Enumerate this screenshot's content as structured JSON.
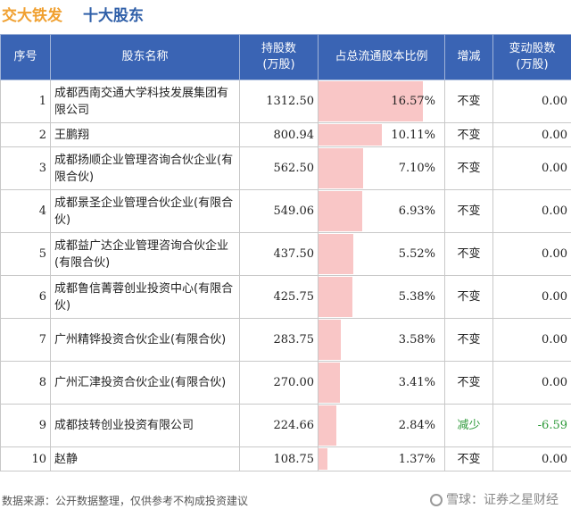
{
  "header": {
    "company": "交大铁发",
    "section": "十大股东"
  },
  "columns": {
    "rank": "序号",
    "name": "股东名称",
    "shares": "持股数\n(万股)",
    "pct": "占总流通股本比例",
    "change": "增减",
    "change_amount": "变动股数\n(万股)"
  },
  "rows": [
    {
      "rank": "1",
      "name": "成都西南交通大学科技发展集团有限公司",
      "shares": "1312.50",
      "pct": "16.57%",
      "pct_value": 16.57,
      "change": "不变",
      "change_amount": "0.00"
    },
    {
      "rank": "2",
      "name": "王鹏翔",
      "shares": "800.94",
      "pct": "10.11%",
      "pct_value": 10.11,
      "change": "不变",
      "change_amount": "0.00"
    },
    {
      "rank": "3",
      "name": "成都扬顺企业管理咨询合伙企业(有限合伙)",
      "shares": "562.50",
      "pct": "7.10%",
      "pct_value": 7.1,
      "change": "不变",
      "change_amount": "0.00"
    },
    {
      "rank": "4",
      "name": "成都景圣企业管理合伙企业(有限合伙)",
      "shares": "549.06",
      "pct": "6.93%",
      "pct_value": 6.93,
      "change": "不变",
      "change_amount": "0.00"
    },
    {
      "rank": "5",
      "name": "成都益广达企业管理咨询合伙企业(有限合伙)",
      "shares": "437.50",
      "pct": "5.52%",
      "pct_value": 5.52,
      "change": "不变",
      "change_amount": "0.00"
    },
    {
      "rank": "6",
      "name": "成都鲁信菁蓉创业投资中心(有限合伙)",
      "shares": "425.75",
      "pct": "5.38%",
      "pct_value": 5.38,
      "change": "不变",
      "change_amount": "0.00"
    },
    {
      "rank": "7",
      "name": "广州精铧投资合伙企业(有限合伙)",
      "shares": "283.75",
      "pct": "3.58%",
      "pct_value": 3.58,
      "change": "不变",
      "change_amount": "0.00"
    },
    {
      "rank": "8",
      "name": "广州汇津投资合伙企业(有限合伙)",
      "shares": "270.00",
      "pct": "3.41%",
      "pct_value": 3.41,
      "change": "不变",
      "change_amount": "0.00"
    },
    {
      "rank": "9",
      "name": "成都技转创业投资有限公司",
      "shares": "224.66",
      "pct": "2.84%",
      "pct_value": 2.84,
      "change": "减少",
      "change_amount": "-6.59"
    },
    {
      "rank": "10",
      "name": "赵静",
      "shares": "108.75",
      "pct": "1.37%",
      "pct_value": 1.37,
      "change": "不变",
      "change_amount": "0.00"
    }
  ],
  "footer": {
    "source": "数据来源：公开数据整理，仅供参考不构成投资建议",
    "brand": "雪球：证券之星财经"
  },
  "colors": {
    "header_bg": "#3a64b4",
    "company_title": "#f0a030",
    "section_title": "#2f5fa8",
    "bar": "#f9c6c6",
    "decrease": "#2e9a3a"
  }
}
